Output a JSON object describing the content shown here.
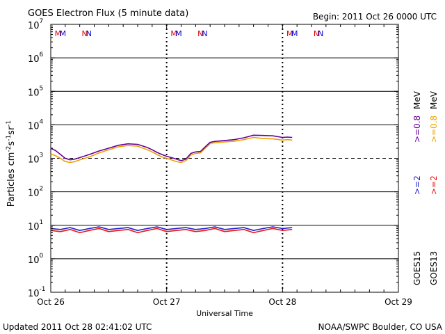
{
  "header": {
    "title": "GOES Electron Flux (5 minute data)",
    "begin": "Begin: 2011 Oct 26 0000 UTC"
  },
  "footer": {
    "updated": "Updated 2011 Oct 28 02:41:02 UTC",
    "credit": "NOAA/SWPC Boulder, CO USA"
  },
  "legend": {
    "goes15_label": "GOES15",
    "goes13_label": "GOES13",
    "g15_ge2": ">=2",
    "g13_ge2": ">=2",
    "g15_ge08": ">=0.8",
    "g13_ge08": ">=0.8",
    "mev1": "MeV",
    "mev2": "MeV"
  },
  "colors": {
    "goes15_ge2": "#1f1fcc",
    "goes13_ge2": "#ee1111",
    "goes15_ge08": "#660099",
    "goes13_ge08": "#f0a000",
    "marker_red": "#dd0000",
    "marker_blue": "#0000dd"
  },
  "chart_data": {
    "type": "line",
    "title": "GOES Electron Flux (5 minute data)",
    "xlabel": "Universal Time",
    "ylabel": "Particles cm^-2 s^-1 sr^-1",
    "yscale": "log",
    "ylim_exp": [
      -1,
      7
    ],
    "xlim_hours": [
      0,
      72
    ],
    "x_ticks": [
      "Oct 26",
      "Oct 27",
      "Oct 28",
      "Oct 29"
    ],
    "y_ticks": [
      {
        "exp": 7,
        "label": "10",
        "sup": "7"
      },
      {
        "exp": 6,
        "label": "10",
        "sup": "6"
      },
      {
        "exp": 5,
        "label": "10",
        "sup": "5"
      },
      {
        "exp": 4,
        "label": "10",
        "sup": "4"
      },
      {
        "exp": 3,
        "label": "10",
        "sup": "3"
      },
      {
        "exp": 2,
        "label": "10",
        "sup": "2"
      },
      {
        "exp": 1,
        "label": "10",
        "sup": "1"
      },
      {
        "exp": 0,
        "label": "10",
        "sup": "0"
      },
      {
        "exp": -1,
        "label": "10",
        "sup": "-1"
      }
    ],
    "threshold": 1000,
    "markers": [
      {
        "hour": 1.5,
        "letter": "M",
        "color": "red"
      },
      {
        "hour": 2.5,
        "letter": "M",
        "color": "blue"
      },
      {
        "hour": 7.0,
        "letter": "N",
        "color": "red"
      },
      {
        "hour": 7.9,
        "letter": "N",
        "color": "blue"
      },
      {
        "hour": 25.5,
        "letter": "M",
        "color": "red"
      },
      {
        "hour": 26.5,
        "letter": "M",
        "color": "blue"
      },
      {
        "hour": 31.0,
        "letter": "N",
        "color": "red"
      },
      {
        "hour": 31.9,
        "letter": "N",
        "color": "blue"
      },
      {
        "hour": 49.5,
        "letter": "M",
        "color": "red"
      },
      {
        "hour": 50.5,
        "letter": "M",
        "color": "blue"
      },
      {
        "hour": 55.0,
        "letter": "N",
        "color": "red"
      },
      {
        "hour": 55.9,
        "letter": "N",
        "color": "blue"
      }
    ],
    "series": [
      {
        "name": "GOES15 >=0.8 MeV",
        "color": "#660099",
        "x": [
          0,
          1,
          2,
          3,
          4,
          5,
          6,
          8,
          10,
          12,
          14,
          16,
          18,
          20,
          21,
          22,
          23,
          24,
          25,
          26,
          27,
          28,
          29,
          30,
          31,
          32,
          33,
          34,
          36,
          38,
          40,
          42,
          44,
          46,
          48,
          49,
          50
        ],
        "y": [
          2000,
          1700,
          1300,
          1000,
          900,
          950,
          1050,
          1300,
          1650,
          2000,
          2450,
          2700,
          2600,
          2100,
          1800,
          1500,
          1300,
          1150,
          1050,
          950,
          850,
          950,
          1400,
          1550,
          1600,
          2200,
          3000,
          3200,
          3400,
          3600,
          4100,
          4900,
          4800,
          4700,
          4200,
          4300,
          4200
        ]
      },
      {
        "name": "GOES13 >=0.8 MeV",
        "color": "#f0a000",
        "x": [
          0,
          1,
          2,
          3,
          4,
          5,
          6,
          8,
          10,
          12,
          14,
          16,
          18,
          20,
          21,
          22,
          23,
          24,
          25,
          26,
          27,
          28,
          29,
          30,
          31,
          32,
          33,
          34,
          36,
          38,
          40,
          42,
          44,
          46,
          48,
          49,
          50
        ],
        "y": [
          1350,
          1200,
          1000,
          800,
          750,
          800,
          900,
          1100,
          1450,
          1800,
          2200,
          2400,
          2300,
          1800,
          1550,
          1300,
          1100,
          1000,
          900,
          800,
          750,
          850,
          1250,
          1400,
          1450,
          2000,
          2750,
          2950,
          3100,
          3250,
          3600,
          4200,
          3900,
          3800,
          3500,
          3600,
          3500
        ]
      },
      {
        "name": "GOES15 >=2 MeV",
        "color": "#1f1fcc",
        "x": [
          0,
          2,
          4,
          6,
          8,
          10,
          12,
          14,
          16,
          18,
          20,
          22,
          24,
          26,
          28,
          30,
          32,
          34,
          36,
          38,
          40,
          42,
          44,
          46,
          48,
          50
        ],
        "y": [
          8,
          7.5,
          8.5,
          7,
          8,
          9,
          7.5,
          8,
          8.5,
          7,
          8,
          9,
          7.5,
          8,
          8.5,
          7.5,
          8,
          9,
          7.5,
          8,
          8.5,
          7,
          8,
          9,
          8,
          8.5
        ]
      },
      {
        "name": "GOES13 >=2 MeV",
        "color": "#ee1111",
        "x": [
          0,
          2,
          4,
          6,
          8,
          10,
          12,
          14,
          16,
          18,
          20,
          22,
          24,
          26,
          28,
          30,
          32,
          34,
          36,
          38,
          40,
          42,
          44,
          46,
          48,
          50
        ],
        "y": [
          7,
          6.5,
          7.5,
          6,
          7,
          8,
          6.5,
          7,
          7.5,
          6,
          7,
          8,
          6.5,
          7,
          7.5,
          6.5,
          7,
          8,
          6.5,
          7,
          7.5,
          6,
          7,
          8,
          7,
          7.5
        ]
      }
    ]
  }
}
